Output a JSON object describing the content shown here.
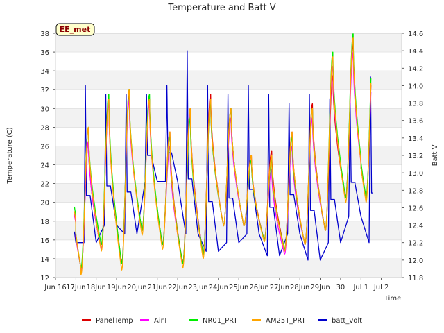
{
  "chart_data": {
    "type": "line",
    "title": "Temperature and Batt V",
    "xlabel": "Time",
    "ylabel": "Temperature (C)",
    "y2label": "Batt V",
    "site_label": "EE_met",
    "xlim": [
      16.0,
      33.0
    ],
    "ylim": [
      12,
      38
    ],
    "y2lim": [
      11.8,
      14.6
    ],
    "x_ticks": [
      {
        "v": 16,
        "label": "Jun 16"
      },
      {
        "v": 17,
        "label": "17Jun"
      },
      {
        "v": 18,
        "label": "18Jun"
      },
      {
        "v": 19,
        "label": "19Jun"
      },
      {
        "v": 20,
        "label": "20Jun"
      },
      {
        "v": 21,
        "label": "21Jun"
      },
      {
        "v": 22,
        "label": "22Jun"
      },
      {
        "v": 23,
        "label": "23Jun"
      },
      {
        "v": 24,
        "label": "24Jun"
      },
      {
        "v": 25,
        "label": "25Jun"
      },
      {
        "v": 26,
        "label": "26Jun"
      },
      {
        "v": 27,
        "label": "27Jun"
      },
      {
        "v": 28,
        "label": "28Jun"
      },
      {
        "v": 29,
        "label": "29Jun"
      },
      {
        "v": 30,
        "label": "30"
      },
      {
        "v": 31,
        "label": "Jul 1"
      },
      {
        "v": 32,
        "label": "Jul 2"
      }
    ],
    "y_ticks": [
      12,
      14,
      16,
      18,
      20,
      22,
      24,
      26,
      28,
      30,
      32,
      34,
      36,
      38
    ],
    "y2_ticks": [
      "11.8",
      "12.0",
      "12.2",
      "12.4",
      "12.6",
      "12.8",
      "13.0",
      "13.2",
      "13.4",
      "13.6",
      "13.8",
      "14.0",
      "14.2",
      "14.4",
      "14.6"
    ],
    "days": [
      16.5,
      17.5,
      18.5,
      19.5,
      20.5,
      21.5,
      22.5,
      23.5,
      24.5,
      25.5,
      26.5,
      27.5,
      28.5,
      29.5,
      30.5,
      31.5
    ],
    "series": [
      {
        "name": "PanelTemp",
        "color": "#dd0000",
        "axis": "left",
        "min": [
          12.5,
          15.0,
          13.5,
          17.0,
          15.5,
          13.5,
          14.5,
          17.5,
          17.5,
          16.0,
          15.0,
          15.5,
          17.0,
          20.5,
          20.5
        ],
        "max": [
          26.5,
          31.0,
          31.5,
          31.0,
          27.5,
          30.0,
          31.5,
          30.0,
          25.0,
          25.5,
          27.5,
          30.5,
          33.5,
          37.0
        ]
      },
      {
        "name": "AirT",
        "color": "#ff00ff",
        "axis": "left",
        "min": [
          12.5,
          15.0,
          13.5,
          17.0,
          15.5,
          13.5,
          14.5,
          17.5,
          17.5,
          16.0,
          14.5,
          15.5,
          17.0,
          20.5,
          20.5
        ],
        "max": [
          26.5,
          30.5,
          31.0,
          30.5,
          26.0,
          29.5,
          30.5,
          29.0,
          24.5,
          23.5,
          26.0,
          29.0,
          34.5,
          36.0
        ]
      },
      {
        "name": "NR01_PRT",
        "color": "#00ee00",
        "axis": "left",
        "min": [
          13.0,
          15.5,
          13.5,
          17.0,
          15.5,
          13.5,
          14.5,
          17.5,
          17.5,
          16.0,
          15.0,
          15.5,
          17.0,
          20.5,
          20.5
        ],
        "max": [
          28.0,
          31.5,
          32.0,
          31.5,
          27.0,
          29.0,
          30.5,
          30.0,
          24.5,
          24.5,
          27.0,
          30.0,
          36.0,
          38.0
        ]
      },
      {
        "name": "AM25T_PRT",
        "color": "#ffa500",
        "axis": "left",
        "min": [
          12.3,
          14.8,
          12.8,
          16.5,
          15.0,
          13.0,
          14.0,
          17.5,
          17.5,
          15.8,
          14.8,
          15.5,
          17.0,
          20.0,
          20.0
        ],
        "max": [
          28.0,
          31.0,
          32.0,
          31.0,
          27.5,
          30.0,
          31.0,
          30.0,
          25.0,
          25.0,
          27.5,
          30.0,
          35.5,
          37.5
        ]
      },
      {
        "name": "batt_volt",
        "color": "#0000cc",
        "axis": "right",
        "min": [
          12.2,
          12.4,
          12.3,
          12.9,
          12.9,
          12.3,
          12.1,
          12.2,
          12.3,
          12.05,
          12.3,
          12.0,
          12.2,
          12.5,
          12.2
        ],
        "max": [
          14.0,
          13.9,
          13.9,
          13.9,
          14.0,
          14.4,
          14.0,
          13.9,
          14.0,
          13.9,
          13.8,
          13.9,
          13.85,
          13.8,
          14.1
        ]
      }
    ]
  }
}
